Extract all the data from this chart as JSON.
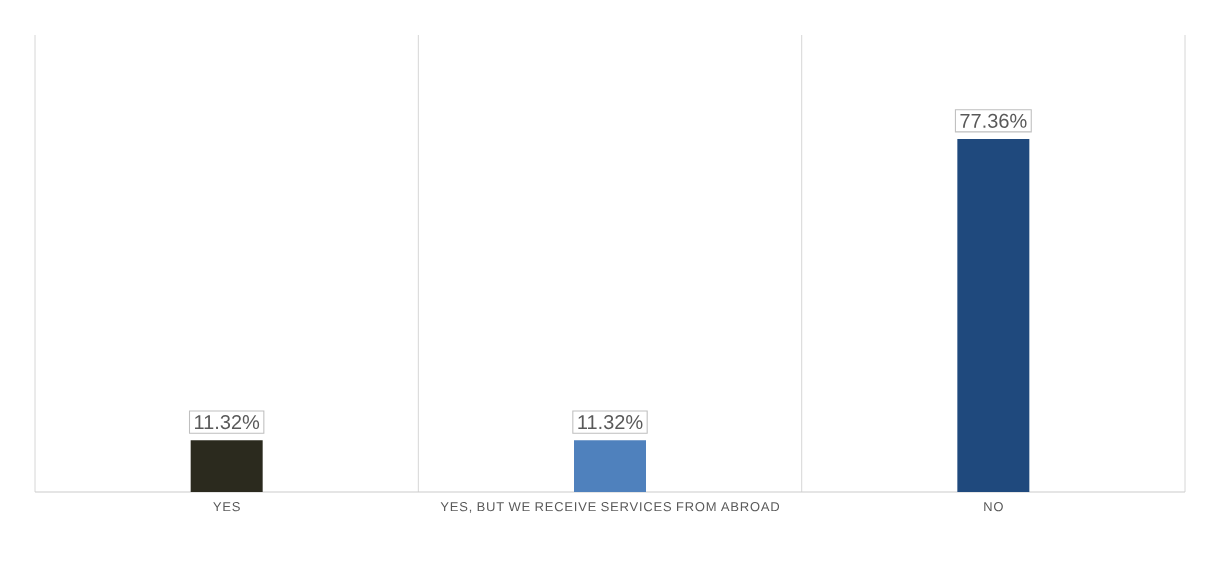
{
  "chart_data": {
    "type": "bar",
    "categories": [
      "YES",
      "YES, BUT WE RECEIVE SERVICES FROM ABROAD",
      "NO"
    ],
    "values": [
      11.32,
      11.32,
      77.36
    ],
    "colors": [
      "#2b2a1e",
      "#4f81bd",
      "#1f497d"
    ],
    "value_labels": [
      "11.32%",
      "11.32%",
      "77.36%"
    ],
    "grid": "x"
  }
}
